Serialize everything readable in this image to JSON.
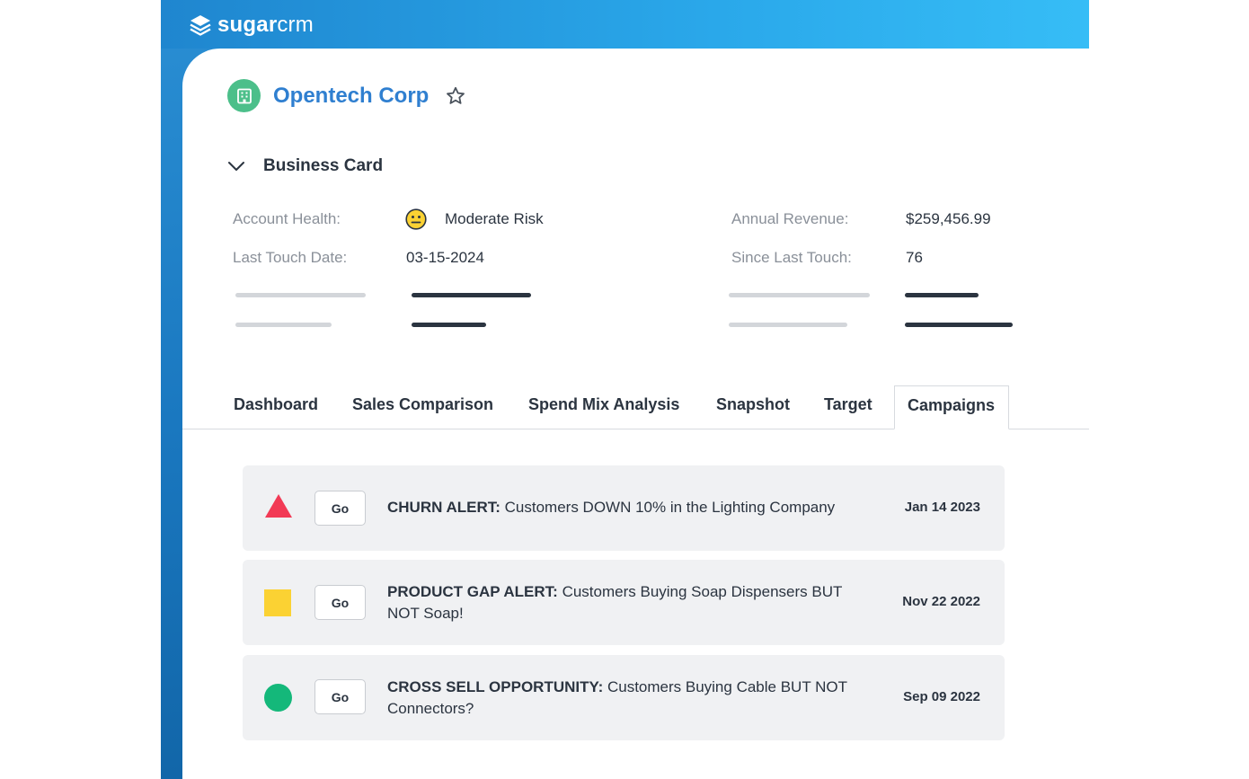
{
  "app": {
    "logo_bold": "sugar",
    "logo_light": "crm"
  },
  "account": {
    "name": "Opentech Corp"
  },
  "business_card": {
    "title": "Business Card",
    "account_health_label": "Account Health:",
    "account_health_value": "Moderate Risk",
    "last_touch_label": "Last Touch Date:",
    "last_touch_value": "03-15-2024",
    "annual_revenue_label": "Annual Revenue:",
    "annual_revenue_value": "$259,456.99",
    "since_last_touch_label": "Since Last Touch:",
    "since_last_touch_value": "76"
  },
  "tabs": [
    {
      "label": "Dashboard"
    },
    {
      "label": "Sales Comparison"
    },
    {
      "label": "Spend Mix Analysis"
    },
    {
      "label": "Snapshot"
    },
    {
      "label": "Target"
    },
    {
      "label": "Campaigns",
      "active": true
    }
  ],
  "alerts": [
    {
      "shape": "triangle",
      "color": "#f23a55",
      "button": "Go",
      "title": "CHURN ALERT:",
      "text": " Customers DOWN 10% in the Lighting Company",
      "date": "Jan 14 2023"
    },
    {
      "shape": "square",
      "color": "#fbd233",
      "button": "Go",
      "title": "PRODUCT GAP ALERT:",
      "text": " Customers Buying Soap Dispensers BUT NOT Soap!",
      "date": "Nov 22 2022"
    },
    {
      "shape": "circle",
      "color": "#14b87a",
      "button": "Go",
      "title": "CROSS SELL OPPORTUNITY:",
      "text": " Customers Buying Cable BUT NOT Connectors?",
      "date": "Sep 09 2022"
    }
  ],
  "colors": {
    "brand_blue": "#2f7fd0",
    "account_icon_green": "#4cbf8a",
    "risk_yellow": "#fbd233"
  },
  "icons": {
    "logo": "stacked-layers-icon",
    "account": "building-icon",
    "favorite": "star-outline-icon",
    "toggle": "chevron-down-icon",
    "health": "neutral-face-icon"
  }
}
